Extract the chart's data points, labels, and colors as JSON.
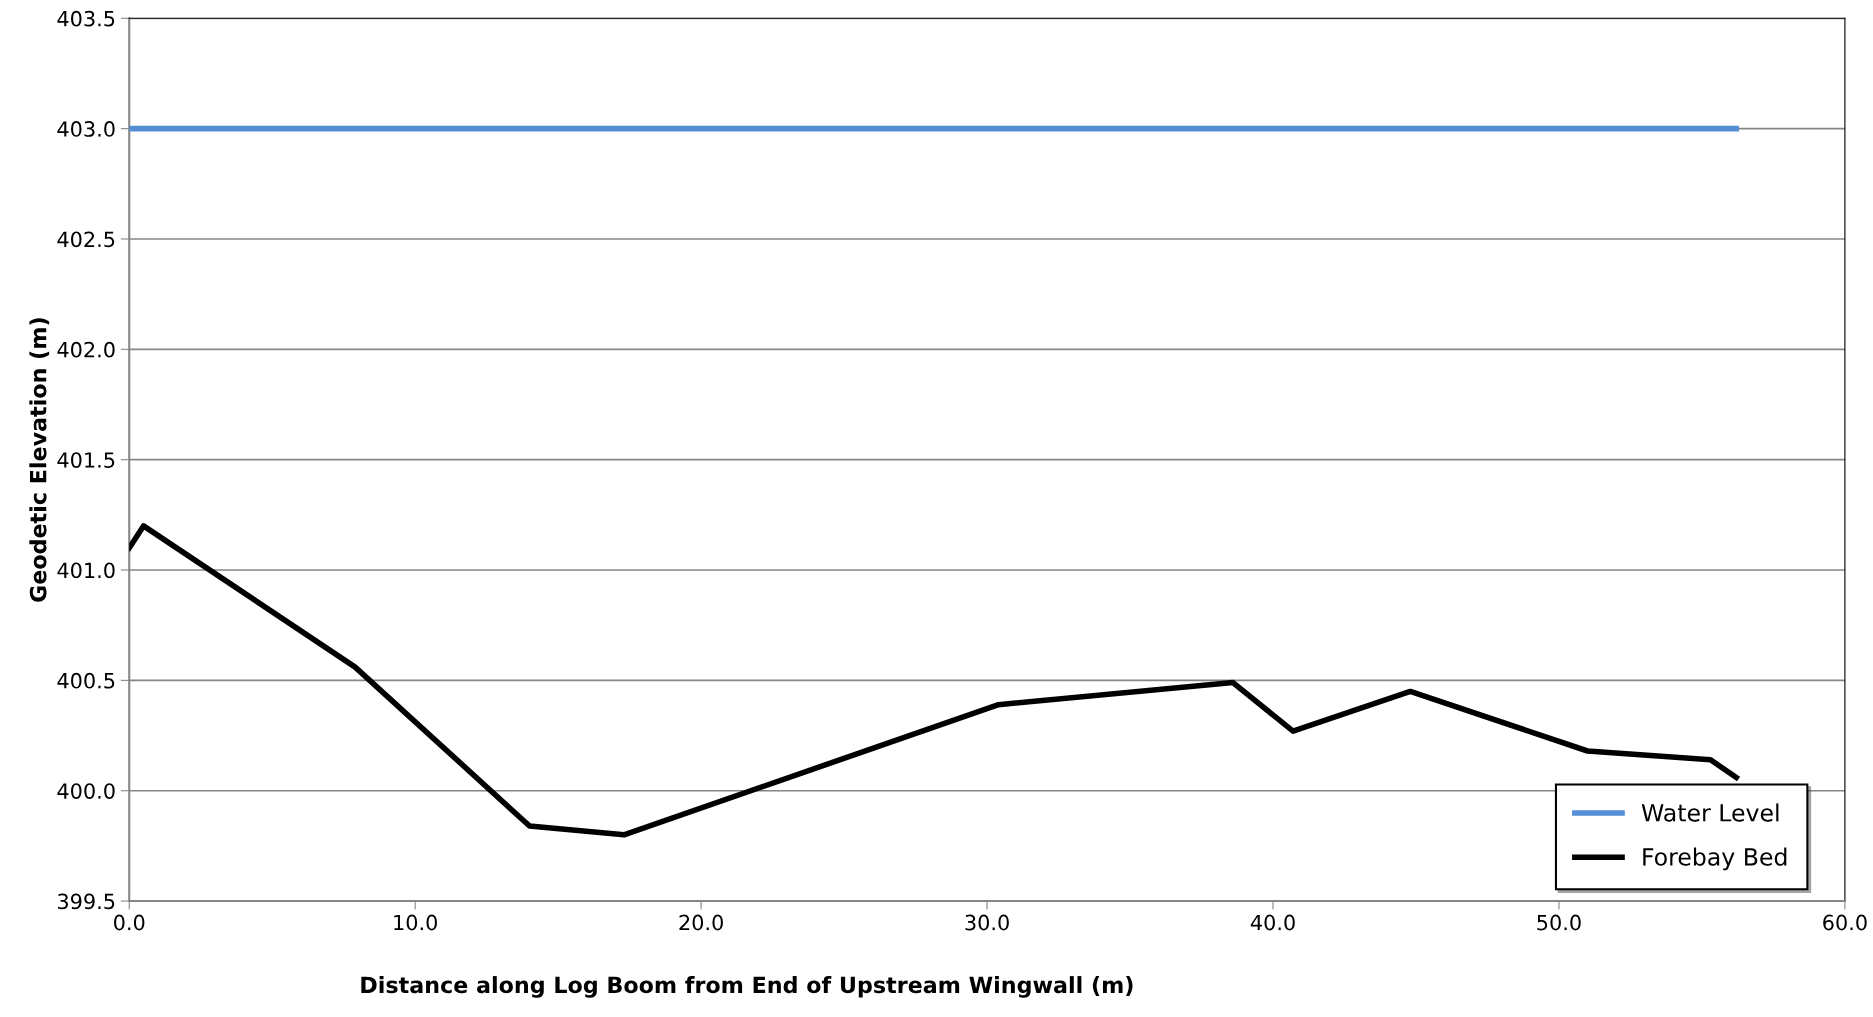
{
  "chart_data": {
    "type": "line",
    "xlabel": "Distance along Log Boom from End of Upstream Wingwall (m)",
    "ylabel": "Geodetic Elevation (m)",
    "series": [
      {
        "name": "Water Level",
        "color": "#558ed5",
        "x": [
          0,
          56.2
        ],
        "values": [
          403.0,
          403.0
        ]
      },
      {
        "name": "Forebay Bed",
        "color": "#000000",
        "x": [
          0,
          0.5,
          7.9,
          14.0,
          17.3,
          30.4,
          38.6,
          40.7,
          44.8,
          51.0,
          55.3,
          56.2
        ],
        "values": [
          401.1,
          401.2,
          400.56,
          399.84,
          399.8,
          400.39,
          400.49,
          400.27,
          400.45,
          400.18,
          400.14,
          400.06
        ]
      }
    ],
    "xlim": [
      0,
      60
    ],
    "xticks": [
      {
        "value": 0,
        "label": "0.0"
      },
      {
        "value": 10,
        "label": "10.0"
      },
      {
        "value": 20,
        "label": "20.0"
      },
      {
        "value": 30,
        "label": "30.0"
      },
      {
        "value": 40,
        "label": "40.0"
      },
      {
        "value": 50,
        "label": "50.0"
      },
      {
        "value": 60,
        "label": "60.0"
      }
    ],
    "ylim": [
      399.5,
      403.5
    ],
    "yticks": [
      399.5,
      {
        "value": 400,
        "label": "400.0"
      },
      400.5,
      {
        "value": 401,
        "label": "401.0"
      },
      401.5,
      {
        "value": 402,
        "label": "402.0"
      },
      402.5,
      {
        "value": 403,
        "label": "403.0"
      },
      403.5
    ],
    "grid": "y",
    "legend": "bottom right",
    "marker": "none",
    "line_style": "solid"
  }
}
